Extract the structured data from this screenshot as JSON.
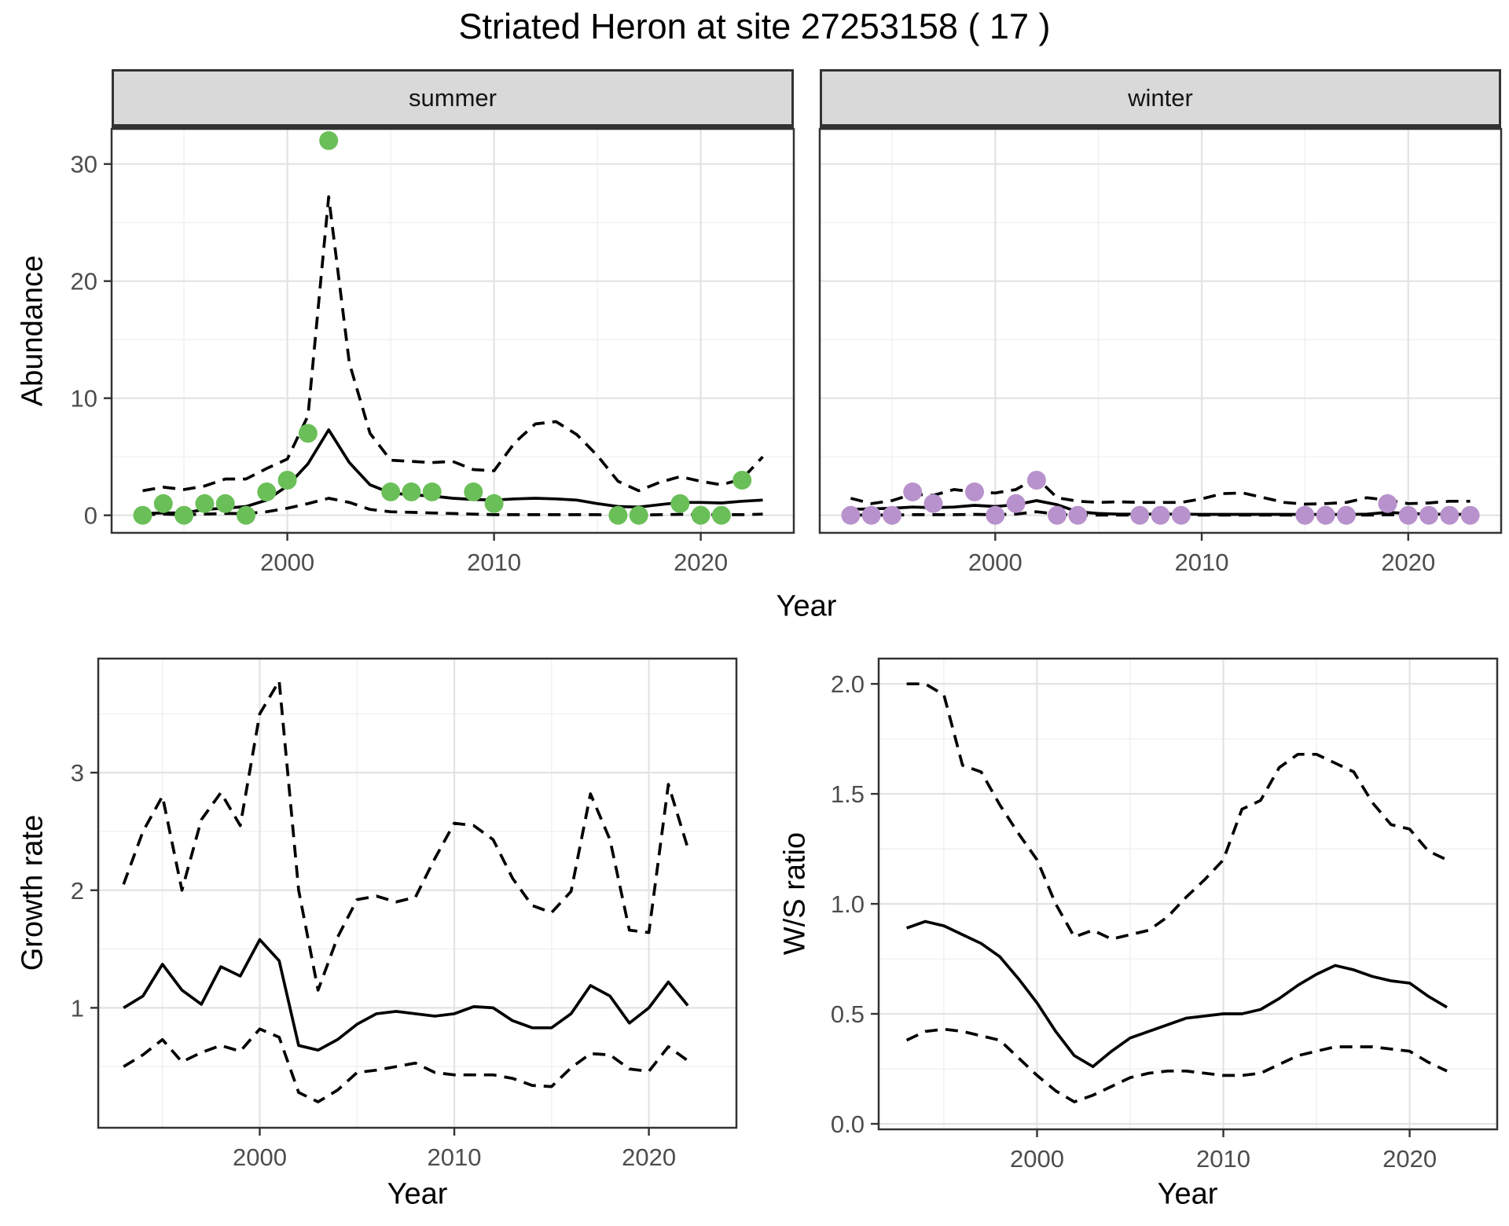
{
  "figure": {
    "title": "Striated Heron at site 27253158 ( 17 )"
  },
  "style": {
    "summer_point_color": "#6bbf59",
    "winter_point_color": "#b892cc",
    "line_color": "#000000",
    "border_color": "#333333",
    "grid_major": "#e3e3e3",
    "grid_minor": "#f0f0f0",
    "strip_bg": "#d9d9d9",
    "tick_label_color": "#4d4d4d"
  },
  "chart_data": [
    {
      "id": "abundance-summer",
      "type": "line",
      "facet": "summer",
      "xlabel": "Year",
      "ylabel": "Abundance",
      "xlim": [
        1991.5,
        2024.5
      ],
      "ylim": [
        -1.5,
        33.0
      ],
      "xticks": {
        "major": [
          2000,
          2010,
          2020
        ],
        "minor": [
          1995,
          2005,
          2015
        ],
        "labels": [
          "2000",
          "2010",
          "2020"
        ]
      },
      "yticks": {
        "major": [
          0,
          10,
          20,
          30
        ],
        "minor": [
          5,
          15,
          25
        ],
        "labels": [
          "0",
          "10",
          "20",
          "30"
        ],
        "show_labels": true
      },
      "x": [
        1993,
        1994,
        1995,
        1996,
        1997,
        1998,
        1999,
        2000,
        2001,
        2002,
        2003,
        2004,
        2005,
        2006,
        2007,
        2008,
        2009,
        2010,
        2011,
        2012,
        2013,
        2014,
        2015,
        2016,
        2017,
        2018,
        2019,
        2020,
        2021,
        2022,
        2023
      ],
      "series": [
        {
          "name": "mean",
          "style": "solid",
          "values": [
            0.15,
            0.2,
            0.2,
            0.5,
            0.6,
            0.75,
            1.3,
            2.5,
            4.4,
            7.3,
            4.5,
            2.6,
            1.9,
            1.75,
            1.65,
            1.45,
            1.35,
            1.3,
            1.4,
            1.45,
            1.4,
            1.3,
            1.0,
            0.75,
            0.7,
            0.9,
            1.1,
            1.1,
            1.05,
            1.2,
            1.3
          ]
        },
        {
          "name": "upper_ci",
          "style": "dashed",
          "values": [
            2.1,
            2.4,
            2.2,
            2.5,
            3.1,
            3.1,
            4.0,
            4.8,
            8.5,
            27.2,
            13.0,
            7.0,
            4.7,
            4.6,
            4.5,
            4.6,
            3.9,
            3.8,
            6.2,
            7.8,
            8.0,
            6.9,
            5.1,
            2.9,
            2.1,
            2.8,
            3.3,
            2.9,
            2.6,
            3.1,
            5.0
          ]
        },
        {
          "name": "lower_ci",
          "style": "dashed",
          "values": [
            0.05,
            0.1,
            0.05,
            0.1,
            0.15,
            0.15,
            0.3,
            0.6,
            1.0,
            1.45,
            1.1,
            0.5,
            0.3,
            0.25,
            0.2,
            0.15,
            0.1,
            0.05,
            0.05,
            0.05,
            0.05,
            0.05,
            0.05,
            0.02,
            0.02,
            0.05,
            0.08,
            0.05,
            0.05,
            0.05,
            0.1
          ]
        }
      ],
      "points": {
        "name": "observed-abundance",
        "color": "#6bbf59",
        "years": [
          1993,
          1994,
          1995,
          1996,
          1997,
          1998,
          1999,
          2000,
          2001,
          2002,
          2005,
          2006,
          2007,
          2009,
          2010,
          2016,
          2017,
          2019,
          2020,
          2021,
          2022
        ],
        "values": [
          0,
          1,
          0,
          1,
          1,
          0,
          2,
          3,
          7,
          32,
          2,
          2,
          2,
          2,
          1,
          0,
          0,
          1,
          0,
          0,
          3
        ]
      }
    },
    {
      "id": "abundance-winter",
      "type": "line",
      "facet": "winter",
      "xlabel": "Year",
      "ylabel": "Abundance",
      "xlim": [
        1991.5,
        2024.5
      ],
      "ylim": [
        -1.5,
        33.0
      ],
      "xticks": {
        "major": [
          2000,
          2010,
          2020
        ],
        "minor": [
          1995,
          2005,
          2015
        ],
        "labels": [
          "2000",
          "2010",
          "2020"
        ]
      },
      "yticks": {
        "major": [
          0,
          10,
          20,
          30
        ],
        "minor": [
          5,
          15,
          25
        ],
        "labels": [
          "0",
          "10",
          "20",
          "30"
        ],
        "show_labels": false
      },
      "x": [
        1993,
        1994,
        1995,
        1996,
        1997,
        1998,
        1999,
        2000,
        2001,
        2002,
        2003,
        2004,
        2005,
        2006,
        2007,
        2008,
        2009,
        2010,
        2011,
        2012,
        2013,
        2014,
        2015,
        2016,
        2017,
        2018,
        2019,
        2020,
        2021,
        2022,
        2023
      ],
      "series": [
        {
          "name": "mean",
          "style": "solid",
          "values": [
            0.5,
            0.55,
            0.6,
            0.7,
            0.65,
            0.7,
            0.85,
            0.75,
            0.9,
            1.25,
            0.9,
            0.3,
            0.15,
            0.1,
            0.1,
            0.1,
            0.1,
            0.08,
            0.08,
            0.08,
            0.08,
            0.08,
            0.07,
            0.07,
            0.07,
            0.1,
            0.25,
            0.15,
            0.1,
            0.08,
            0.08
          ]
        },
        {
          "name": "upper_ci",
          "style": "dashed",
          "values": [
            1.45,
            1.0,
            1.25,
            1.8,
            1.7,
            2.2,
            2.0,
            1.9,
            2.2,
            3.2,
            1.5,
            1.2,
            1.1,
            1.15,
            1.1,
            1.1,
            1.1,
            1.4,
            1.85,
            1.9,
            1.5,
            1.1,
            0.95,
            1.0,
            1.1,
            1.5,
            1.3,
            1.0,
            1.05,
            1.2,
            1.2
          ]
        },
        {
          "name": "lower_ci",
          "style": "dashed",
          "values": [
            0.02,
            0.02,
            0.02,
            0.05,
            0.05,
            0.05,
            0.08,
            0.05,
            0.1,
            0.3,
            0.1,
            0.02,
            0.02,
            0.02,
            0.02,
            0.02,
            0.02,
            0.02,
            0.02,
            0.02,
            0.02,
            0.02,
            0.02,
            0.02,
            0.02,
            0.02,
            0.05,
            0.02,
            0.02,
            0.02,
            0.02
          ]
        }
      ],
      "points": {
        "name": "observed-abundance",
        "color": "#b892cc",
        "years": [
          1993,
          1994,
          1995,
          1996,
          1997,
          1999,
          2000,
          2001,
          2002,
          2003,
          2004,
          2007,
          2008,
          2009,
          2015,
          2016,
          2017,
          2019,
          2020,
          2021,
          2022,
          2023
        ],
        "values": [
          0,
          0,
          0,
          2,
          1,
          2,
          0,
          1,
          3,
          0,
          0,
          0,
          0,
          0,
          0,
          0,
          0,
          1,
          0,
          0,
          0,
          0
        ]
      }
    },
    {
      "id": "growth-rate",
      "type": "line",
      "facet": null,
      "xlabel": "Year",
      "ylabel": "Growth rate",
      "xlim": [
        1991.7,
        2024.5
      ],
      "ylim": [
        -0.02,
        3.97
      ],
      "xticks": {
        "major": [
          2000,
          2010,
          2020
        ],
        "minor": [
          1995,
          2005,
          2015
        ],
        "labels": [
          "2000",
          "2010",
          "2020"
        ]
      },
      "yticks": {
        "major": [
          1,
          2,
          3
        ],
        "minor": [
          0.5,
          1.5,
          2.5,
          3.5
        ],
        "labels": [
          "1",
          "2",
          "3"
        ],
        "show_labels": true
      },
      "x": [
        1993,
        1994,
        1995,
        1996,
        1997,
        1998,
        1999,
        2000,
        2001,
        2002,
        2003,
        2004,
        2005,
        2006,
        2007,
        2008,
        2009,
        2010,
        2011,
        2012,
        2013,
        2014,
        2015,
        2016,
        2017,
        2018,
        2019,
        2020,
        2021,
        2022
      ],
      "series": [
        {
          "name": "mean",
          "style": "solid",
          "values": [
            1.0,
            1.1,
            1.37,
            1.15,
            1.03,
            1.35,
            1.27,
            1.58,
            1.4,
            0.68,
            0.64,
            0.73,
            0.86,
            0.95,
            0.97,
            0.95,
            0.93,
            0.95,
            1.01,
            1.0,
            0.89,
            0.83,
            0.83,
            0.95,
            1.19,
            1.1,
            0.87,
            1.0,
            1.22,
            1.02
          ]
        },
        {
          "name": "upper_ci",
          "style": "dashed",
          "values": [
            2.05,
            2.5,
            2.8,
            2.0,
            2.6,
            2.83,
            2.55,
            3.5,
            3.78,
            2.0,
            1.15,
            1.6,
            1.92,
            1.95,
            1.9,
            1.94,
            2.27,
            2.57,
            2.55,
            2.43,
            2.1,
            1.87,
            1.81,
            1.99,
            2.82,
            2.43,
            1.66,
            1.64,
            2.9,
            2.36
          ]
        },
        {
          "name": "lower_ci",
          "style": "dashed",
          "values": [
            0.5,
            0.6,
            0.73,
            0.54,
            0.62,
            0.68,
            0.63,
            0.82,
            0.75,
            0.28,
            0.2,
            0.3,
            0.45,
            0.47,
            0.5,
            0.53,
            0.45,
            0.43,
            0.43,
            0.43,
            0.4,
            0.34,
            0.33,
            0.49,
            0.61,
            0.6,
            0.48,
            0.46,
            0.67,
            0.55
          ]
        }
      ],
      "points": null
    },
    {
      "id": "ws-ratio",
      "type": "line",
      "facet": null,
      "xlabel": "Year",
      "ylabel": "W/S ratio",
      "xlim": [
        1991.5,
        2024.7
      ],
      "ylim": [
        -0.025,
        2.115
      ],
      "xticks": {
        "major": [
          2000,
          2010,
          2020
        ],
        "minor": [
          1995,
          2005,
          2015
        ],
        "labels": [
          "2000",
          "2010",
          "2020"
        ]
      },
      "yticks": {
        "major": [
          0.0,
          0.5,
          1.0,
          1.5,
          2.0
        ],
        "minor": [
          0.25,
          0.75,
          1.25,
          1.75
        ],
        "labels": [
          "0.0",
          "0.5",
          "1.0",
          "1.5",
          "2.0"
        ],
        "show_labels": true
      },
      "x": [
        1993,
        1994,
        1995,
        1996,
        1997,
        1998,
        1999,
        2000,
        2001,
        2002,
        2003,
        2004,
        2005,
        2006,
        2007,
        2008,
        2009,
        2010,
        2011,
        2012,
        2013,
        2014,
        2015,
        2016,
        2017,
        2018,
        2019,
        2020,
        2021,
        2022
      ],
      "series": [
        {
          "name": "mean",
          "style": "solid",
          "values": [
            0.89,
            0.92,
            0.9,
            0.86,
            0.82,
            0.76,
            0.66,
            0.55,
            0.42,
            0.31,
            0.26,
            0.33,
            0.39,
            0.42,
            0.45,
            0.48,
            0.49,
            0.5,
            0.5,
            0.52,
            0.57,
            0.63,
            0.68,
            0.72,
            0.7,
            0.67,
            0.65,
            0.64,
            0.58,
            0.53
          ]
        },
        {
          "name": "upper_ci",
          "style": "dashed",
          "values": [
            2.0,
            2.0,
            1.95,
            1.63,
            1.6,
            1.45,
            1.32,
            1.2,
            1.0,
            0.85,
            0.88,
            0.84,
            0.86,
            0.88,
            0.94,
            1.03,
            1.11,
            1.2,
            1.43,
            1.47,
            1.62,
            1.68,
            1.68,
            1.64,
            1.6,
            1.46,
            1.36,
            1.34,
            1.24,
            1.2
          ]
        },
        {
          "name": "lower_ci",
          "style": "dashed",
          "values": [
            0.38,
            0.42,
            0.43,
            0.42,
            0.4,
            0.38,
            0.3,
            0.22,
            0.15,
            0.1,
            0.13,
            0.17,
            0.21,
            0.23,
            0.24,
            0.24,
            0.23,
            0.22,
            0.22,
            0.23,
            0.27,
            0.31,
            0.33,
            0.35,
            0.35,
            0.35,
            0.34,
            0.33,
            0.28,
            0.24
          ]
        }
      ],
      "points": null
    }
  ]
}
